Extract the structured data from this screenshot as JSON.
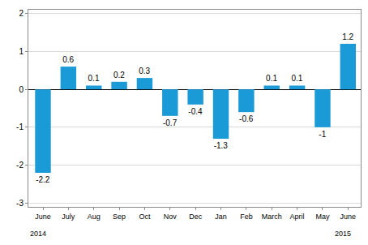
{
  "chart_data": {
    "type": "bar",
    "categories": [
      "June",
      "July",
      "Aug",
      "Sep",
      "Oct",
      "Nov",
      "Dec",
      "Jan",
      "Feb",
      "March",
      "April",
      "May",
      "June"
    ],
    "values": [
      -2.2,
      0.6,
      0.1,
      0.2,
      0.3,
      -0.7,
      -0.4,
      -1.3,
      -0.6,
      0.1,
      0.1,
      -1.0,
      1.2
    ],
    "color": "#1a9bd7",
    "ylim": [
      -3.1,
      2.1
    ],
    "yticks": [
      -3,
      -2,
      -1,
      0,
      1,
      2
    ],
    "grid": true,
    "data_labels": true,
    "annotations": [
      {
        "text": "2014",
        "index": 0
      },
      {
        "text": "2015",
        "index": 12
      }
    ]
  }
}
